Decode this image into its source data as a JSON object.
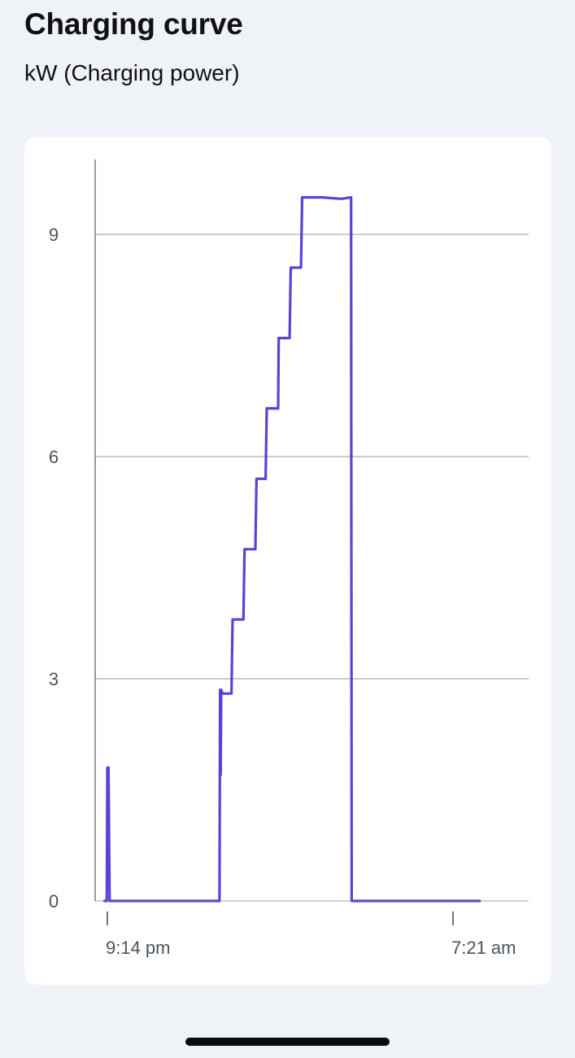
{
  "header": {
    "title": "Charging curve",
    "subtitle": "kW (Charging power)"
  },
  "chart_data": {
    "type": "line",
    "title": "Charging curve",
    "ylabel": "kW (Charging power)",
    "xlabel": "",
    "ylim": [
      0,
      10
    ],
    "y_ticks": [
      0,
      3,
      6,
      9
    ],
    "y_tick_labels": [
      "0",
      "3",
      "6",
      "9"
    ],
    "x_tick_labels": [
      "9:14 pm",
      "7:21 am"
    ],
    "grid": "horizontal",
    "line_color": "#5545d6",
    "series": [
      {
        "points": [
          [
            "9:09 pm",
            0
          ],
          [
            "9:13 pm",
            0
          ],
          [
            "9:14 pm",
            1.8
          ],
          [
            "9:16 pm",
            1.8
          ],
          [
            "9:18 pm",
            0
          ],
          [
            "12:31 am",
            0
          ],
          [
            "12:32 am",
            2.85
          ],
          [
            "12:33 am",
            1.7
          ],
          [
            "12:34 am",
            2.85
          ],
          [
            "12:36 am",
            2.8
          ],
          [
            "12:52 am",
            2.8
          ],
          [
            "12:54 am",
            3.8
          ],
          [
            "1:13 am",
            3.8
          ],
          [
            "1:15 am",
            4.75
          ],
          [
            "1:34 am",
            4.75
          ],
          [
            "1:36 am",
            5.7
          ],
          [
            "1:52 am",
            5.7
          ],
          [
            "1:54 am",
            6.65
          ],
          [
            "2:14 am",
            6.65
          ],
          [
            "2:15 am",
            7.6
          ],
          [
            "2:34 am",
            7.6
          ],
          [
            "2:36 am",
            8.55
          ],
          [
            "2:54 am",
            8.55
          ],
          [
            "2:56 am",
            9.5
          ],
          [
            "3:30 am",
            9.5
          ],
          [
            "4:05 am",
            9.48
          ],
          [
            "4:22 am",
            9.5
          ],
          [
            "4:23 am",
            0
          ],
          [
            "8:08 am",
            0
          ]
        ]
      }
    ]
  }
}
